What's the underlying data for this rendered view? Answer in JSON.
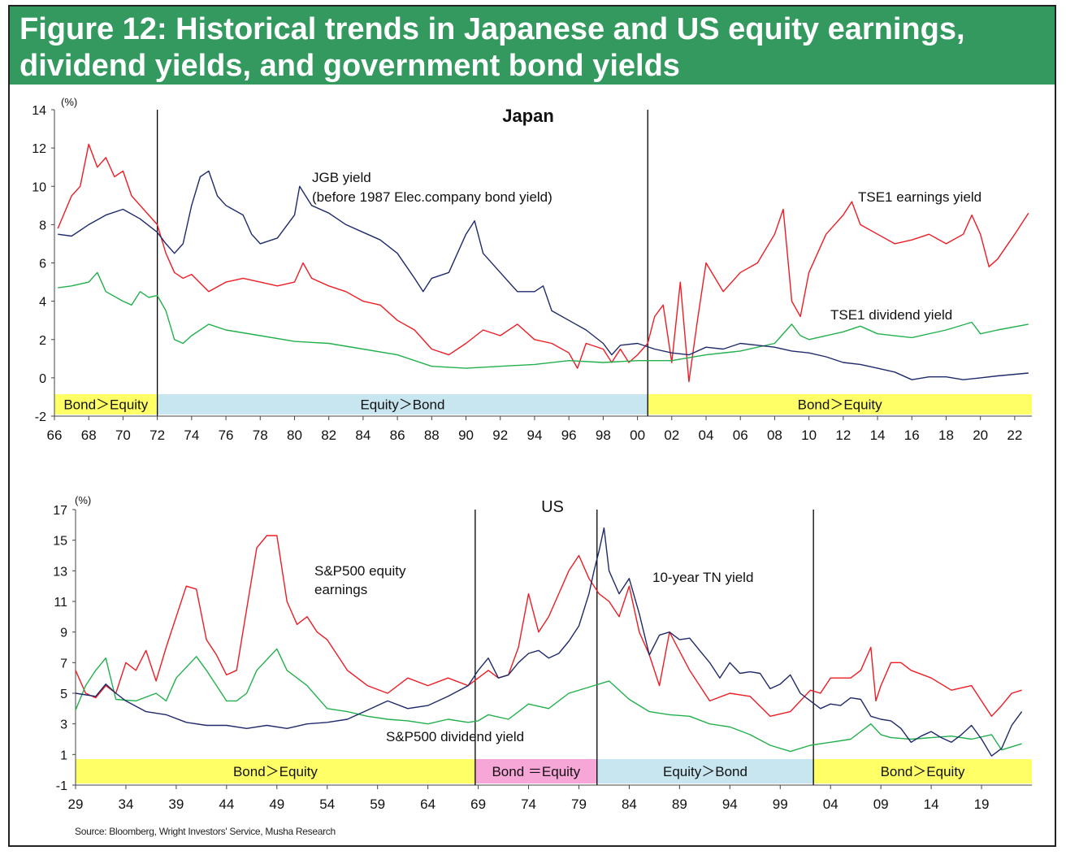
{
  "header": {
    "title": "Figure 12: Historical trends in Japanese and US equity earnings,\ndividend yields, and government bond yields"
  },
  "source": "Source: Bloomberg, Wright Investors' Service, Musha Research",
  "colors": {
    "header_bg": "#33995f",
    "red": "#ee1c24",
    "green": "#22b04c",
    "navy": "#1f2a6b",
    "yellow": "#ffff66",
    "lightblue": "#c8e6f0",
    "pink": "#f7a6d8"
  },
  "chart_data": [
    {
      "type": "line",
      "title": "Japan",
      "ylabel": "(%)",
      "xlim": [
        1966,
        2023
      ],
      "ylim": [
        -2,
        14
      ],
      "y_ticks": [
        -2,
        0,
        2,
        4,
        6,
        8,
        10,
        12,
        14
      ],
      "x_ticks": [
        1966,
        1968,
        1970,
        1972,
        1974,
        1976,
        1978,
        1980,
        1982,
        1984,
        1986,
        1988,
        1990,
        1992,
        1994,
        1996,
        1998,
        2000,
        2002,
        2004,
        2006,
        2008,
        2010,
        2012,
        2014,
        2016,
        2018,
        2020,
        2022
      ],
      "x_tick_labels": [
        "66",
        "68",
        "70",
        "72",
        "74",
        "76",
        "78",
        "80",
        "82",
        "84",
        "86",
        "88",
        "90",
        "92",
        "94",
        "96",
        "98",
        "00",
        "02",
        "04",
        "06",
        "08",
        "10",
        "12",
        "14",
        "16",
        "18",
        "20",
        "22"
      ],
      "vlines": [
        1972,
        2000.6
      ],
      "regimes": [
        {
          "label": "Bond＞Equity",
          "from": 1966,
          "to": 1972,
          "color": "yellow"
        },
        {
          "label": "Equity＞Bond",
          "from": 1972,
          "to": 2000.6,
          "color": "lightblue"
        },
        {
          "label": "Bond＞Equity",
          "from": 2000.6,
          "to": 2023,
          "color": "yellow"
        }
      ],
      "annotations": [
        {
          "text": "JGB yield",
          "series": "jgb"
        },
        {
          "text": "(before 1987 Elec.company bond yield)",
          "series": "jgb"
        },
        {
          "text": "TSE1 earnings yield",
          "series": "earnings"
        },
        {
          "text": "TSE1 dividend yield",
          "series": "dividend"
        }
      ],
      "series": [
        {
          "key": "earnings",
          "color": "red",
          "x": [
            1966.2,
            1967,
            1967.5,
            1968,
            1968.5,
            1969,
            1969.5,
            1970,
            1970.5,
            1971,
            1971.5,
            1972,
            1972.5,
            1973,
            1973.5,
            1974,
            1975,
            1976,
            1977,
            1978,
            1979,
            1980,
            1980.5,
            1981,
            1982,
            1983,
            1984,
            1985,
            1986,
            1987,
            1988,
            1989,
            1990,
            1991,
            1992,
            1993,
            1994,
            1995,
            1996,
            1996.5,
            1997,
            1998,
            1998.5,
            1999,
            1999.5,
            2000,
            2000.6,
            2001,
            2001.5,
            2002,
            2002.5,
            2003,
            2003.5,
            2004,
            2005,
            2006,
            2007,
            2008,
            2008.5,
            2009,
            2009.5,
            2010,
            2011,
            2012,
            2012.5,
            2013,
            2014,
            2015,
            2016,
            2017,
            2018,
            2019,
            2019.5,
            2020,
            2020.5,
            2021,
            2022,
            2022.8
          ],
          "y": [
            7.8,
            9.5,
            10,
            12.2,
            11,
            11.5,
            10.5,
            10.8,
            9.5,
            9,
            8.5,
            8,
            6.5,
            5.5,
            5.2,
            5.4,
            4.5,
            5,
            5.2,
            5,
            4.8,
            5,
            6,
            5.2,
            4.8,
            4.5,
            4,
            3.8,
            3,
            2.5,
            1.5,
            1.2,
            1.8,
            2.5,
            2.2,
            2.8,
            2,
            1.8,
            1.3,
            0.5,
            1.8,
            1.5,
            0.8,
            1.5,
            0.8,
            1.2,
            1.8,
            3.2,
            3.8,
            0.8,
            5,
            -0.2,
            3,
            6,
            4.5,
            5.5,
            6,
            7.5,
            8.8,
            4,
            3.2,
            5.5,
            7.5,
            8.5,
            9.2,
            8,
            7.5,
            7,
            7.2,
            7.5,
            7,
            7.5,
            8.5,
            7.5,
            5.8,
            6.2,
            7.5,
            8.6
          ]
        },
        {
          "key": "dividend",
          "color": "green",
          "x": [
            1966.2,
            1967,
            1968,
            1968.5,
            1969,
            1970,
            1970.5,
            1971,
            1971.5,
            1972,
            1972.5,
            1973,
            1973.5,
            1974,
            1975,
            1976,
            1978,
            1980,
            1982,
            1984,
            1986,
            1988,
            1990,
            1992,
            1994,
            1996,
            1998,
            2000,
            2002,
            2004,
            2006,
            2008,
            2009,
            2009.5,
            2010,
            2012,
            2013,
            2014,
            2016,
            2018,
            2019.5,
            2020,
            2021,
            2022.8
          ],
          "y": [
            4.7,
            4.8,
            5,
            5.5,
            4.5,
            4,
            3.8,
            4.5,
            4.2,
            4.3,
            3.5,
            2,
            1.8,
            2.2,
            2.8,
            2.5,
            2.2,
            1.9,
            1.8,
            1.5,
            1.2,
            0.6,
            0.5,
            0.6,
            0.7,
            0.9,
            0.8,
            0.9,
            0.9,
            1.2,
            1.4,
            1.8,
            2.8,
            2.2,
            2,
            2.4,
            2.7,
            2.3,
            2.1,
            2.5,
            2.9,
            2.3,
            2.5,
            2.8
          ]
        },
        {
          "key": "jgb",
          "color": "navy",
          "x": [
            1966.2,
            1967,
            1968,
            1969,
            1970,
            1971,
            1972,
            1972.5,
            1973,
            1973.5,
            1974,
            1974.5,
            1975,
            1975.5,
            1976,
            1977,
            1977.5,
            1978,
            1979,
            1980,
            1980.3,
            1981,
            1982,
            1983,
            1984,
            1985,
            1986,
            1987,
            1987.5,
            1988,
            1989,
            1990,
            1990.5,
            1991,
            1992,
            1993,
            1994,
            1994.5,
            1995,
            1996,
            1997,
            1998,
            1998.5,
            1999,
            2000,
            2001,
            2002,
            2003,
            2004,
            2005,
            2006,
            2007,
            2008,
            2009,
            2010,
            2011,
            2012,
            2013,
            2014,
            2015,
            2016,
            2017,
            2018,
            2019,
            2020,
            2021,
            2022.8
          ],
          "y": [
            7.5,
            7.4,
            8,
            8.5,
            8.8,
            8.3,
            7.6,
            7,
            6.5,
            7,
            9,
            10.5,
            10.8,
            9.5,
            9,
            8.5,
            7.5,
            7,
            7.3,
            8.5,
            10,
            9,
            8.6,
            8,
            7.6,
            7.2,
            6.5,
            5.2,
            4.5,
            5.2,
            5.5,
            7.5,
            8.2,
            6.5,
            5.5,
            4.5,
            4.5,
            4.8,
            3.5,
            3,
            2.5,
            1.8,
            1.2,
            1.7,
            1.8,
            1.5,
            1.3,
            1.2,
            1.6,
            1.5,
            1.8,
            1.7,
            1.6,
            1.4,
            1.3,
            1.1,
            0.8,
            0.7,
            0.5,
            0.3,
            -0.1,
            0.05,
            0.05,
            -0.1,
            0,
            0.1,
            0.25
          ]
        }
      ]
    },
    {
      "type": "line",
      "title": "US",
      "ylabel": "(%)",
      "xlim": [
        1929,
        2024
      ],
      "ylim": [
        -1,
        17
      ],
      "y_ticks": [
        -1,
        1,
        3,
        5,
        7,
        9,
        11,
        13,
        15,
        17
      ],
      "x_ticks": [
        1929,
        1934,
        1939,
        1944,
        1949,
        1954,
        1959,
        1964,
        1969,
        1974,
        1979,
        1984,
        1989,
        1994,
        1999,
        2004,
        2009,
        2014,
        2019
      ],
      "x_tick_labels": [
        "29",
        "34",
        "39",
        "44",
        "49",
        "54",
        "59",
        "64",
        "69",
        "74",
        "79",
        "84",
        "89",
        "94",
        "99",
        "04",
        "09",
        "14",
        "19"
      ],
      "vlines": [
        1968.7,
        1980.8,
        2002.3
      ],
      "regimes": [
        {
          "label": "Bond＞Equity",
          "from": 1929,
          "to": 1968.7,
          "color": "yellow"
        },
        {
          "label": "Bond ＝Equity",
          "from": 1968.7,
          "to": 1980.8,
          "color": "pink"
        },
        {
          "label": "Equity＞Bond",
          "from": 1980.8,
          "to": 2002.3,
          "color": "lightblue"
        },
        {
          "label": "Bond＞Equity",
          "from": 2002.3,
          "to": 2024,
          "color": "yellow"
        }
      ],
      "annotations": [
        {
          "text": "S&P500 equity",
          "series": "earnings"
        },
        {
          "text": "earnings",
          "series": "earnings"
        },
        {
          "text": "10-year TN yield",
          "series": "tn10"
        },
        {
          "text": "S&P500 dividend yield",
          "series": "dividend"
        }
      ],
      "series": [
        {
          "key": "earnings",
          "color": "red",
          "x": [
            1929,
            1930,
            1931,
            1932,
            1933,
            1934,
            1935,
            1936,
            1937,
            1938,
            1939,
            1940,
            1941,
            1942,
            1943,
            1944,
            1945,
            1946,
            1947,
            1948,
            1949,
            1950,
            1951,
            1952,
            1953,
            1954,
            1955,
            1956,
            1957,
            1958,
            1960,
            1962,
            1964,
            1966,
            1968,
            1969,
            1970,
            1971,
            1972,
            1973,
            1974,
            1975,
            1976,
            1977,
            1978,
            1979,
            1980,
            1981,
            1982,
            1983,
            1984,
            1985,
            1986,
            1987,
            1988,
            1990,
            1992,
            1994,
            1996,
            1998,
            2000,
            2002,
            2003,
            2004,
            2006,
            2007,
            2008,
            2008.5,
            2009,
            2010,
            2011,
            2012,
            2014,
            2016,
            2018,
            2020,
            2021,
            2022,
            2023
          ],
          "y": [
            6.5,
            5,
            4.7,
            5.5,
            5,
            7,
            6.5,
            7.8,
            5.8,
            8,
            10,
            12,
            11.8,
            8.5,
            7.5,
            6.2,
            6.5,
            10.5,
            14.5,
            15.3,
            15.3,
            11,
            9.5,
            10,
            9,
            8.5,
            7.5,
            6.5,
            6,
            5.5,
            5,
            6,
            5.5,
            6,
            5.5,
            6,
            6.5,
            6,
            6.2,
            8,
            11.5,
            9,
            10,
            11.5,
            13,
            14,
            12.5,
            11.5,
            11,
            10,
            12,
            9,
            7.5,
            5.5,
            9,
            6.5,
            4.5,
            5,
            4.8,
            3.5,
            3.8,
            5.2,
            5,
            6,
            6,
            6.5,
            8,
            4.5,
            5.5,
            7,
            7,
            6.5,
            6,
            5.2,
            5.5,
            3.5,
            4.2,
            5,
            5.2
          ]
        },
        {
          "key": "dividend",
          "color": "green",
          "x": [
            1929,
            1930,
            1931,
            1932,
            1933,
            1935,
            1937,
            1938,
            1939,
            1941,
            1942,
            1943,
            1944,
            1945,
            1946,
            1947,
            1949,
            1950,
            1951,
            1952,
            1954,
            1956,
            1958,
            1960,
            1962,
            1964,
            1966,
            1968,
            1969,
            1970,
            1972,
            1974,
            1976,
            1978,
            1980,
            1982,
            1984,
            1986,
            1988,
            1990,
            1992,
            1994,
            1996,
            1998,
            2000,
            2002,
            2004,
            2006,
            2008,
            2009,
            2010,
            2012,
            2014,
            2016,
            2018,
            2020,
            2021,
            2023
          ],
          "y": [
            3.9,
            5.5,
            6.5,
            7.3,
            4.6,
            4.5,
            5,
            4.5,
            6,
            7.4,
            6.5,
            5.5,
            4.5,
            4.5,
            5,
            6.5,
            7.9,
            6.5,
            6,
            5.5,
            4,
            3.8,
            3.5,
            3.3,
            3.2,
            3,
            3.3,
            3.1,
            3.2,
            3.6,
            3.3,
            4.3,
            4,
            5,
            5.4,
            5.8,
            4.6,
            3.8,
            3.6,
            3.5,
            3,
            2.8,
            2.3,
            1.6,
            1.2,
            1.6,
            1.8,
            2,
            3,
            2.3,
            2.1,
            2,
            2.1,
            2.2,
            2,
            2.3,
            1.3,
            1.7
          ]
        },
        {
          "key": "tn10",
          "color": "navy",
          "x": [
            1929,
            1931,
            1932,
            1933,
            1934,
            1936,
            1938,
            1940,
            1942,
            1944,
            1946,
            1948,
            1950,
            1952,
            1954,
            1956,
            1958,
            1960,
            1962,
            1964,
            1966,
            1968,
            1969,
            1970,
            1971,
            1972,
            1973,
            1974,
            1975,
            1976,
            1977,
            1978,
            1979,
            1980,
            1980.5,
            1981,
            1981.5,
            1982,
            1983,
            1984,
            1985,
            1986,
            1987,
            1988,
            1989,
            1990,
            1991,
            1992,
            1993,
            1994,
            1995,
            1996,
            1997,
            1998,
            1999,
            2000,
            2001,
            2002,
            2003,
            2004,
            2005,
            2006,
            2007,
            2008,
            2009,
            2010,
            2011,
            2012,
            2013,
            2014,
            2015,
            2016,
            2017,
            2018,
            2019,
            2020,
            2021,
            2022,
            2023
          ],
          "y": [
            5,
            4.8,
            5.6,
            5,
            4.5,
            3.8,
            3.6,
            3.1,
            2.9,
            2.9,
            2.7,
            2.9,
            2.7,
            3,
            3.1,
            3.3,
            3.9,
            4.5,
            4,
            4.2,
            4.8,
            5.5,
            6.5,
            7.3,
            6,
            6.2,
            7,
            7.6,
            7.8,
            7.3,
            7.6,
            8.4,
            9.4,
            11.5,
            13,
            14.3,
            15.8,
            13,
            11.5,
            12.5,
            10.2,
            7.5,
            8.8,
            9,
            8.5,
            8.6,
            7.8,
            7,
            6,
            7,
            6.3,
            6.4,
            6.3,
            5.3,
            5.6,
            6.2,
            5,
            4.5,
            4,
            4.3,
            4.2,
            4.7,
            4.6,
            3.5,
            3.3,
            3.2,
            2.7,
            1.8,
            2.2,
            2.5,
            2.1,
            1.8,
            2.3,
            2.9,
            2.0,
            0.9,
            1.4,
            2.9,
            3.8
          ]
        }
      ]
    }
  ]
}
